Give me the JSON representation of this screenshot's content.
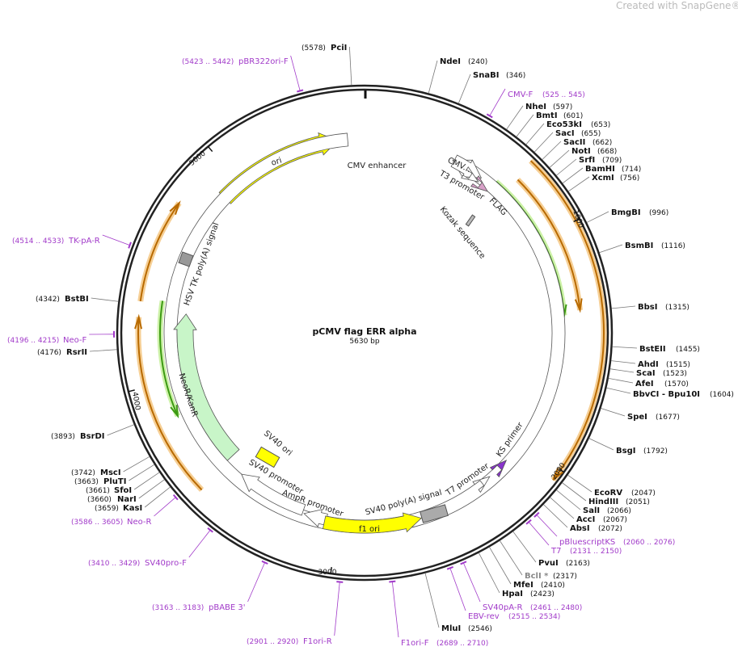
{
  "watermark": "Created with SnapGene®",
  "title": "pCMV flag ERR alpha",
  "size": "5630 bp",
  "enzymes": [
    {
      "name": "PciI",
      "position": "(5578)"
    },
    {
      "name": "NdeI",
      "position": "(240)"
    },
    {
      "name": "SnaBI",
      "position": "(346)"
    },
    {
      "name": "NheI",
      "position": "(597)"
    },
    {
      "name": "BmtI",
      "position": "(601)"
    },
    {
      "name": "Eco53kI",
      "position": "(653)"
    },
    {
      "name": "SacI",
      "position": "(655)"
    },
    {
      "name": "SacII",
      "position": "(662)"
    },
    {
      "name": "NotI",
      "position": "(668)"
    },
    {
      "name": "SrfI",
      "position": "(709)"
    },
    {
      "name": "BamHI",
      "position": "(714)"
    },
    {
      "name": "XcmI",
      "position": "(756)"
    },
    {
      "name": "BmgBI",
      "position": "(996)"
    },
    {
      "name": "BsmBI",
      "position": "(1116)"
    },
    {
      "name": "BbsI",
      "position": "(1315)"
    },
    {
      "name": "BstEII",
      "position": "(1455)"
    },
    {
      "name": "AhdI",
      "position": "(1515)"
    },
    {
      "name": "ScaI",
      "position": "(1523)"
    },
    {
      "name": "AfeI",
      "position": "(1570)"
    },
    {
      "name": "BbvCI - Bpu10I",
      "position": "(1604)"
    },
    {
      "name": "SpeI",
      "position": "(1677)"
    },
    {
      "name": "BsgI",
      "position": "(1792)"
    },
    {
      "name": "EcoRV",
      "position": "(2047)"
    },
    {
      "name": "HindIII",
      "position": "(2051)"
    },
    {
      "name": "SalI",
      "position": "(2066)"
    },
    {
      "name": "AccI",
      "position": "(2067)"
    },
    {
      "name": "AbsI",
      "position": "(2072)"
    },
    {
      "name": "PvuI",
      "position": "(2163)"
    },
    {
      "name": "BclI *",
      "position": "(2317)"
    },
    {
      "name": "MfeI",
      "position": "(2410)"
    },
    {
      "name": "HpaI",
      "position": "(2423)"
    },
    {
      "name": "MluI",
      "position": "(2546)"
    },
    {
      "name": "KasI",
      "position": "(3659)"
    },
    {
      "name": "NarI",
      "position": "(3660)"
    },
    {
      "name": "SfoI",
      "position": "(3661)"
    },
    {
      "name": "PluTI",
      "position": "(3663)"
    },
    {
      "name": "MscI",
      "position": "(3742)"
    },
    {
      "name": "BsrDI",
      "position": "(3893)"
    },
    {
      "name": "RsrII",
      "position": "(4176)"
    },
    {
      "name": "BstBI",
      "position": "(4342)"
    }
  ],
  "primers": [
    {
      "name": "pBR322ori-F",
      "range": "(5423 .. 5442)"
    },
    {
      "name": "CMV-F",
      "range": "(525 .. 545)"
    },
    {
      "name": "TK-pA-R",
      "range": "(4514 .. 4533)"
    },
    {
      "name": "Neo-F",
      "range": "(4196 .. 4215)"
    },
    {
      "name": "Neo-R",
      "range": "(3586 .. 3605)"
    },
    {
      "name": "SV40pro-F",
      "range": "(3410 .. 3429)"
    },
    {
      "name": "pBABE 3'",
      "range": "(3163 .. 3183)"
    },
    {
      "name": "F1ori-R",
      "range": "(2901 .. 2920)"
    },
    {
      "name": "F1ori-F",
      "range": "(2689 .. 2710)"
    },
    {
      "name": "EBV-rev",
      "range": "(2515 .. 2534)"
    },
    {
      "name": "SV40pA-R",
      "range": "(2461 .. 2480)"
    },
    {
      "name": "T7",
      "range": "(2131 .. 2150)"
    },
    {
      "name": "pBluescriptKS",
      "range": "(2060 .. 2076)"
    }
  ],
  "features": [
    "ori",
    "CMV enhancer",
    "CMV...",
    "T3 promoter",
    "FLAG",
    "Kozak sequence",
    "HSV TK poly(A) signal",
    "NeoR/KanR",
    "SV40 ori",
    "SV40 promoter",
    "AmpR promoter",
    "f1 ori",
    "SV40 poly(A) signal",
    "T7 promoter",
    "KS primer"
  ],
  "ticks": [
    "1000",
    "2000",
    "3000",
    "4000",
    "5000"
  ]
}
